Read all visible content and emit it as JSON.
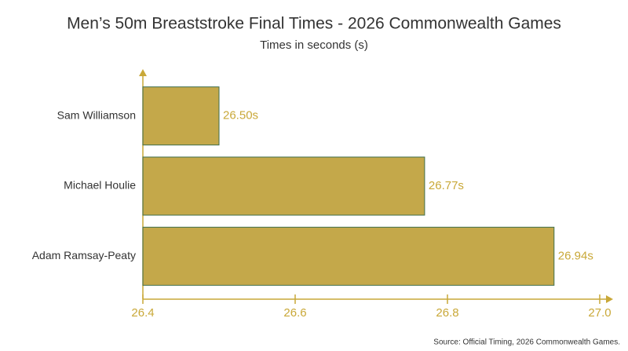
{
  "chart_data": {
    "type": "bar",
    "orientation": "horizontal",
    "title": "Men’s 50m Breaststroke Final Times - 2026 Commonwealth Games",
    "subtitle": "Times in seconds (s)",
    "categories": [
      "Sam Williamson",
      "Michael Houlie",
      "Adam Ramsay-Peaty"
    ],
    "values": [
      26.5,
      26.77,
      26.94
    ],
    "value_labels": [
      "26.50s",
      "26.77s",
      "26.94s"
    ],
    "color": "#c4a84a",
    "edge_color": "#3f6e4c",
    "axis_color": "#c9a838",
    "xlim": [
      26.4,
      27.0
    ],
    "xticks": [
      26.4,
      26.6,
      26.8,
      {
        "value": 27,
        "label": "27.0"
      }
    ],
    "source": "Source: Official Timing, 2026 Commonwealth Games."
  }
}
